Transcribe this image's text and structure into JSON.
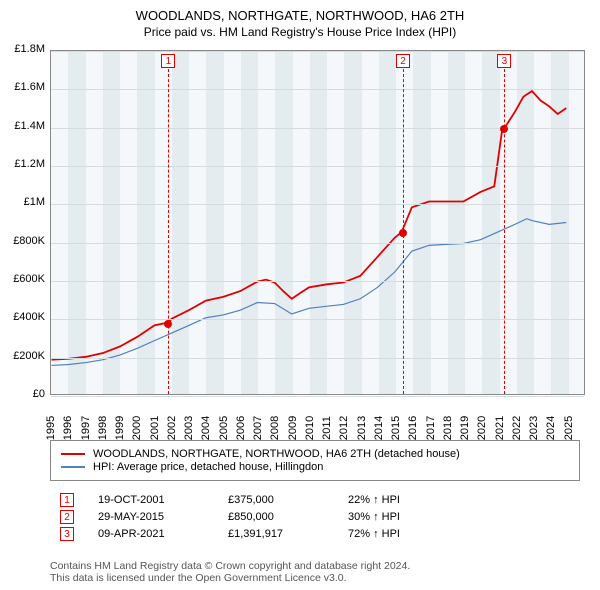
{
  "title": "WOODLANDS, NORTHGATE, NORTHWOOD, HA6 2TH",
  "subtitle": "Price paid vs. HM Land Registry's House Price Index (HPI)",
  "chart": {
    "type": "line",
    "background_color": "#f4f8fa",
    "band_color": "#e4ecf0",
    "grid_color": "#d4dce0",
    "border_color": "#888888",
    "x_range": [
      1995,
      2026
    ],
    "y_range": [
      0,
      1800000
    ],
    "y_ticks": [
      {
        "v": 0,
        "label": "£0"
      },
      {
        "v": 200000,
        "label": "£200K"
      },
      {
        "v": 400000,
        "label": "£400K"
      },
      {
        "v": 600000,
        "label": "£600K"
      },
      {
        "v": 800000,
        "label": "£800K"
      },
      {
        "v": 1000000,
        "label": "£1M"
      },
      {
        "v": 1200000,
        "label": "£1.2M"
      },
      {
        "v": 1400000,
        "label": "£1.4M"
      },
      {
        "v": 1600000,
        "label": "£1.6M"
      },
      {
        "v": 1800000,
        "label": "£1.8M"
      }
    ],
    "x_ticks": [
      1995,
      1996,
      1997,
      1998,
      1999,
      2000,
      2001,
      2002,
      2003,
      2004,
      2005,
      2006,
      2007,
      2008,
      2009,
      2010,
      2011,
      2012,
      2013,
      2014,
      2015,
      2016,
      2017,
      2018,
      2019,
      2020,
      2021,
      2022,
      2023,
      2024,
      2025
    ],
    "series": [
      {
        "name": "WOODLANDS, NORTHGATE, NORTHWOOD, HA6 2TH (detached house)",
        "color": "#e00000",
        "width": 1.8,
        "points": [
          [
            1995,
            180000
          ],
          [
            1996,
            185000
          ],
          [
            1997,
            195000
          ],
          [
            1998,
            215000
          ],
          [
            1999,
            250000
          ],
          [
            2000,
            300000
          ],
          [
            2001,
            360000
          ],
          [
            2001.8,
            375000
          ],
          [
            2002,
            395000
          ],
          [
            2003,
            440000
          ],
          [
            2004,
            490000
          ],
          [
            2005,
            510000
          ],
          [
            2006,
            540000
          ],
          [
            2007,
            590000
          ],
          [
            2007.5,
            600000
          ],
          [
            2008,
            585000
          ],
          [
            2008.5,
            540000
          ],
          [
            2009,
            500000
          ],
          [
            2009.5,
            530000
          ],
          [
            2010,
            560000
          ],
          [
            2011,
            575000
          ],
          [
            2012,
            585000
          ],
          [
            2013,
            620000
          ],
          [
            2014,
            720000
          ],
          [
            2015,
            820000
          ],
          [
            2015.4,
            850000
          ],
          [
            2016,
            980000
          ],
          [
            2017,
            1010000
          ],
          [
            2018,
            1010000
          ],
          [
            2019,
            1010000
          ],
          [
            2020,
            1060000
          ],
          [
            2020.8,
            1090000
          ],
          [
            2021.27,
            1391917
          ],
          [
            2021.5,
            1410000
          ],
          [
            2022,
            1480000
          ],
          [
            2022.5,
            1560000
          ],
          [
            2023,
            1590000
          ],
          [
            2023.5,
            1540000
          ],
          [
            2024,
            1510000
          ],
          [
            2024.5,
            1470000
          ],
          [
            2025,
            1500000
          ]
        ]
      },
      {
        "name": "HPI: Average price, detached house, Hillingdon",
        "color": "#5080c0",
        "width": 1.2,
        "points": [
          [
            1995,
            150000
          ],
          [
            1996,
            155000
          ],
          [
            1997,
            165000
          ],
          [
            1998,
            180000
          ],
          [
            1999,
            205000
          ],
          [
            2000,
            240000
          ],
          [
            2001,
            280000
          ],
          [
            2002,
            320000
          ],
          [
            2003,
            360000
          ],
          [
            2004,
            400000
          ],
          [
            2005,
            415000
          ],
          [
            2006,
            440000
          ],
          [
            2007,
            480000
          ],
          [
            2008,
            475000
          ],
          [
            2009,
            420000
          ],
          [
            2010,
            450000
          ],
          [
            2011,
            460000
          ],
          [
            2012,
            470000
          ],
          [
            2013,
            500000
          ],
          [
            2014,
            560000
          ],
          [
            2015,
            640000
          ],
          [
            2016,
            750000
          ],
          [
            2017,
            780000
          ],
          [
            2018,
            785000
          ],
          [
            2019,
            790000
          ],
          [
            2020,
            810000
          ],
          [
            2021,
            850000
          ],
          [
            2022,
            890000
          ],
          [
            2022.7,
            920000
          ],
          [
            2023,
            910000
          ],
          [
            2024,
            890000
          ],
          [
            2025,
            900000
          ]
        ]
      }
    ],
    "markers": [
      {
        "n": "1",
        "x": 2001.8,
        "y": 375000
      },
      {
        "n": "2",
        "x": 2015.4,
        "y": 850000
      },
      {
        "n": "3",
        "x": 2021.27,
        "y": 1391917
      }
    ]
  },
  "legend": [
    {
      "color": "#e00000",
      "label": "WOODLANDS, NORTHGATE, NORTHWOOD, HA6 2TH (detached house)"
    },
    {
      "color": "#5080c0",
      "label": "HPI: Average price, detached house, Hillingdon"
    }
  ],
  "events": [
    {
      "n": "1",
      "date": "19-OCT-2001",
      "price": "£375,000",
      "delta": "22% ↑ HPI"
    },
    {
      "n": "2",
      "date": "29-MAY-2015",
      "price": "£850,000",
      "delta": "30% ↑ HPI"
    },
    {
      "n": "3",
      "date": "09-APR-2021",
      "price": "£1,391,917",
      "delta": "72% ↑ HPI"
    }
  ],
  "footer1": "Contains HM Land Registry data © Crown copyright and database right 2024.",
  "footer2": "This data is licensed under the Open Government Licence v3.0."
}
